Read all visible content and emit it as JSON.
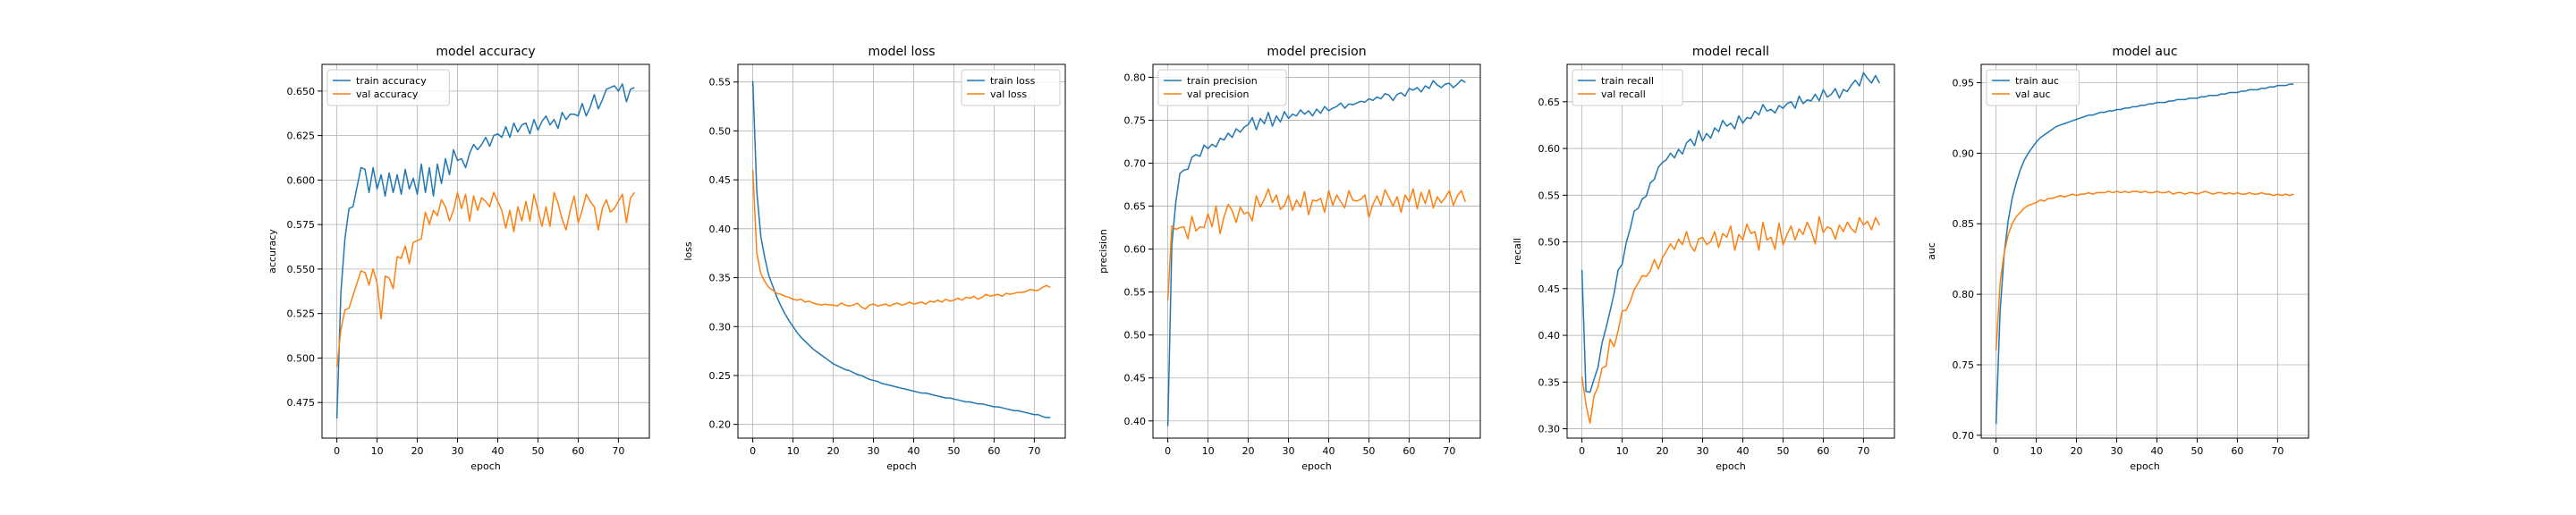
{
  "colors": {
    "train": "#1f77b4",
    "val": "#ff7f0e",
    "grid": "#b0b0b0"
  },
  "chart_data": [
    {
      "type": "line",
      "title": "model accuracy",
      "xlabel": "epoch",
      "ylabel": "accuracy",
      "grid": true,
      "legend_loc": "upper-left",
      "xlim": [
        -3.7,
        77.7
      ],
      "ylim": [
        0.455,
        0.665
      ],
      "xticks": [
        0,
        10,
        20,
        30,
        40,
        50,
        60,
        70
      ],
      "yticks": [
        0.475,
        0.5,
        0.525,
        0.55,
        0.575,
        0.6,
        0.625,
        0.65
      ],
      "ytick_labels": [
        "0.475",
        "0.500",
        "0.525",
        "0.550",
        "0.575",
        "0.600",
        "0.625",
        "0.650"
      ],
      "series": [
        {
          "name": "train accuracy",
          "color_key": "train",
          "x_step": 1,
          "values": [
            0.466,
            0.537,
            0.567,
            0.584,
            0.585,
            0.596,
            0.607,
            0.606,
            0.593,
            0.607,
            0.595,
            0.603,
            0.591,
            0.604,
            0.593,
            0.603,
            0.592,
            0.606,
            0.595,
            0.601,
            0.592,
            0.609,
            0.593,
            0.607,
            0.591,
            0.609,
            0.598,
            0.612,
            0.603,
            0.617,
            0.611,
            0.612,
            0.607,
            0.615,
            0.62,
            0.617,
            0.62,
            0.624,
            0.619,
            0.625,
            0.626,
            0.624,
            0.63,
            0.624,
            0.632,
            0.627,
            0.631,
            0.632,
            0.626,
            0.634,
            0.628,
            0.633,
            0.636,
            0.631,
            0.634,
            0.629,
            0.638,
            0.634,
            0.637,
            0.637,
            0.636,
            0.643,
            0.636,
            0.641,
            0.648,
            0.64,
            0.645,
            0.651,
            0.652,
            0.653,
            0.65,
            0.654,
            0.644,
            0.651,
            0.652
          ]
        },
        {
          "name": "val accuracy",
          "color_key": "val",
          "x_step": 1,
          "values": [
            0.495,
            0.516,
            0.527,
            0.528,
            0.535,
            0.542,
            0.549,
            0.548,
            0.541,
            0.55,
            0.542,
            0.522,
            0.546,
            0.545,
            0.539,
            0.557,
            0.556,
            0.563,
            0.553,
            0.565,
            0.566,
            0.567,
            0.582,
            0.575,
            0.583,
            0.58,
            0.589,
            0.585,
            0.577,
            0.583,
            0.593,
            0.584,
            0.592,
            0.577,
            0.591,
            0.583,
            0.59,
            0.588,
            0.585,
            0.593,
            0.588,
            0.583,
            0.573,
            0.583,
            0.571,
            0.585,
            0.577,
            0.588,
            0.577,
            0.592,
            0.583,
            0.574,
            0.585,
            0.574,
            0.593,
            0.587,
            0.578,
            0.572,
            0.583,
            0.591,
            0.576,
            0.583,
            0.592,
            0.588,
            0.585,
            0.572,
            0.584,
            0.589,
            0.582,
            0.584,
            0.588,
            0.592,
            0.576,
            0.59,
            0.593
          ]
        }
      ]
    },
    {
      "type": "line",
      "title": "model loss",
      "xlabel": "epoch",
      "ylabel": "loss",
      "grid": true,
      "legend_loc": "upper-right",
      "xlim": [
        -3.7,
        77.7
      ],
      "ylim": [
        0.186,
        0.568
      ],
      "xticks": [
        0,
        10,
        20,
        30,
        40,
        50,
        60,
        70
      ],
      "yticks": [
        0.2,
        0.25,
        0.3,
        0.35,
        0.4,
        0.45,
        0.5,
        0.55
      ],
      "ytick_labels": [
        "0.20",
        "0.25",
        "0.30",
        "0.35",
        "0.40",
        "0.45",
        "0.50",
        "0.55"
      ],
      "series": [
        {
          "name": "train loss",
          "color_key": "train",
          "x_step": 1,
          "values": [
            0.551,
            0.438,
            0.392,
            0.37,
            0.352,
            0.341,
            0.33,
            0.321,
            0.313,
            0.306,
            0.3,
            0.294,
            0.289,
            0.285,
            0.281,
            0.277,
            0.274,
            0.271,
            0.268,
            0.265,
            0.262,
            0.26,
            0.258,
            0.256,
            0.255,
            0.253,
            0.251,
            0.25,
            0.248,
            0.246,
            0.245,
            0.244,
            0.242,
            0.241,
            0.24,
            0.239,
            0.238,
            0.237,
            0.236,
            0.235,
            0.234,
            0.233,
            0.232,
            0.232,
            0.231,
            0.23,
            0.229,
            0.228,
            0.227,
            0.227,
            0.226,
            0.225,
            0.224,
            0.223,
            0.223,
            0.222,
            0.221,
            0.221,
            0.22,
            0.219,
            0.218,
            0.218,
            0.217,
            0.216,
            0.215,
            0.214,
            0.214,
            0.213,
            0.212,
            0.211,
            0.21,
            0.21,
            0.208,
            0.207,
            0.207
          ]
        },
        {
          "name": "val loss",
          "color_key": "val",
          "x_step": 1,
          "values": [
            0.46,
            0.375,
            0.354,
            0.346,
            0.34,
            0.337,
            0.334,
            0.333,
            0.331,
            0.33,
            0.328,
            0.327,
            0.328,
            0.325,
            0.326,
            0.324,
            0.323,
            0.322,
            0.323,
            0.322,
            0.322,
            0.321,
            0.324,
            0.322,
            0.321,
            0.322,
            0.324,
            0.32,
            0.318,
            0.322,
            0.323,
            0.321,
            0.322,
            0.323,
            0.321,
            0.323,
            0.324,
            0.322,
            0.323,
            0.325,
            0.323,
            0.324,
            0.325,
            0.323,
            0.326,
            0.325,
            0.327,
            0.325,
            0.328,
            0.326,
            0.327,
            0.329,
            0.327,
            0.33,
            0.329,
            0.331,
            0.328,
            0.33,
            0.333,
            0.331,
            0.332,
            0.333,
            0.331,
            0.334,
            0.333,
            0.334,
            0.335,
            0.335,
            0.336,
            0.338,
            0.337,
            0.337,
            0.34,
            0.342,
            0.34
          ]
        }
      ]
    },
    {
      "type": "line",
      "title": "model precision",
      "xlabel": "epoch",
      "ylabel": "precision",
      "grid": true,
      "legend_loc": "upper-left",
      "xlim": [
        -3.7,
        77.7
      ],
      "ylim": [
        0.38,
        0.815
      ],
      "xticks": [
        0,
        10,
        20,
        30,
        40,
        50,
        60,
        70
      ],
      "yticks": [
        0.4,
        0.45,
        0.5,
        0.55,
        0.6,
        0.65,
        0.7,
        0.75,
        0.8
      ],
      "ytick_labels": [
        "0.40",
        "0.45",
        "0.50",
        "0.55",
        "0.60",
        "0.65",
        "0.70",
        "0.75",
        "0.80"
      ],
      "series": [
        {
          "name": "train precision",
          "color_key": "train",
          "x_step": 1,
          "values": [
            0.394,
            0.605,
            0.655,
            0.688,
            0.692,
            0.693,
            0.707,
            0.71,
            0.708,
            0.721,
            0.717,
            0.722,
            0.719,
            0.729,
            0.727,
            0.735,
            0.73,
            0.74,
            0.736,
            0.742,
            0.745,
            0.753,
            0.739,
            0.752,
            0.746,
            0.759,
            0.743,
            0.755,
            0.748,
            0.76,
            0.752,
            0.757,
            0.755,
            0.762,
            0.757,
            0.761,
            0.755,
            0.763,
            0.758,
            0.766,
            0.761,
            0.764,
            0.766,
            0.77,
            0.764,
            0.769,
            0.768,
            0.77,
            0.772,
            0.771,
            0.775,
            0.773,
            0.777,
            0.775,
            0.781,
            0.779,
            0.773,
            0.78,
            0.782,
            0.778,
            0.787,
            0.785,
            0.788,
            0.783,
            0.79,
            0.787,
            0.796,
            0.791,
            0.788,
            0.792,
            0.793,
            0.788,
            0.792,
            0.797,
            0.794
          ]
        },
        {
          "name": "val precision",
          "color_key": "val",
          "x_step": 1,
          "values": [
            0.54,
            0.627,
            0.623,
            0.625,
            0.626,
            0.612,
            0.638,
            0.621,
            0.626,
            0.625,
            0.641,
            0.626,
            0.65,
            0.618,
            0.638,
            0.652,
            0.645,
            0.631,
            0.649,
            0.641,
            0.643,
            0.633,
            0.662,
            0.649,
            0.658,
            0.67,
            0.654,
            0.663,
            0.646,
            0.651,
            0.663,
            0.645,
            0.657,
            0.649,
            0.667,
            0.64,
            0.657,
            0.656,
            0.659,
            0.643,
            0.668,
            0.651,
            0.663,
            0.655,
            0.648,
            0.668,
            0.657,
            0.656,
            0.658,
            0.663,
            0.637,
            0.652,
            0.662,
            0.651,
            0.669,
            0.66,
            0.65,
            0.661,
            0.643,
            0.663,
            0.655,
            0.67,
            0.647,
            0.666,
            0.653,
            0.669,
            0.648,
            0.661,
            0.654,
            0.66,
            0.668,
            0.651,
            0.662,
            0.668,
            0.655
          ]
        }
      ]
    },
    {
      "type": "line",
      "title": "model recall",
      "xlabel": "epoch",
      "ylabel": "recall",
      "grid": true,
      "legend_loc": "upper-left",
      "xlim": [
        -3.7,
        77.7
      ],
      "ylim": [
        0.29,
        0.69
      ],
      "xticks": [
        0,
        10,
        20,
        30,
        40,
        50,
        60,
        70
      ],
      "yticks": [
        0.3,
        0.35,
        0.4,
        0.45,
        0.5,
        0.55,
        0.6,
        0.65
      ],
      "ytick_labels": [
        "0.30",
        "0.35",
        "0.40",
        "0.45",
        "0.50",
        "0.55",
        "0.60",
        "0.65"
      ],
      "series": [
        {
          "name": "train recall",
          "color_key": "train",
          "x_step": 1,
          "values": [
            0.47,
            0.34,
            0.339,
            0.353,
            0.366,
            0.392,
            0.408,
            0.426,
            0.445,
            0.47,
            0.476,
            0.499,
            0.514,
            0.533,
            0.536,
            0.546,
            0.549,
            0.563,
            0.567,
            0.58,
            0.585,
            0.588,
            0.595,
            0.59,
            0.599,
            0.594,
            0.606,
            0.61,
            0.603,
            0.619,
            0.608,
            0.616,
            0.611,
            0.622,
            0.618,
            0.63,
            0.624,
            0.627,
            0.621,
            0.635,
            0.627,
            0.633,
            0.632,
            0.64,
            0.636,
            0.647,
            0.64,
            0.642,
            0.638,
            0.646,
            0.643,
            0.648,
            0.65,
            0.643,
            0.656,
            0.648,
            0.652,
            0.651,
            0.658,
            0.651,
            0.663,
            0.655,
            0.658,
            0.664,
            0.654,
            0.663,
            0.661,
            0.668,
            0.673,
            0.667,
            0.681,
            0.675,
            0.67,
            0.678,
            0.67
          ]
        },
        {
          "name": "val recall",
          "color_key": "val",
          "x_step": 1,
          "values": [
            0.356,
            0.326,
            0.306,
            0.335,
            0.345,
            0.365,
            0.367,
            0.396,
            0.388,
            0.405,
            0.426,
            0.427,
            0.436,
            0.449,
            0.456,
            0.464,
            0.463,
            0.469,
            0.481,
            0.471,
            0.483,
            0.49,
            0.498,
            0.492,
            0.503,
            0.497,
            0.511,
            0.496,
            0.49,
            0.503,
            0.505,
            0.497,
            0.5,
            0.511,
            0.494,
            0.509,
            0.505,
            0.517,
            0.491,
            0.508,
            0.502,
            0.519,
            0.509,
            0.511,
            0.491,
            0.521,
            0.502,
            0.505,
            0.492,
            0.52,
            0.497,
            0.508,
            0.517,
            0.502,
            0.514,
            0.508,
            0.521,
            0.512,
            0.498,
            0.527,
            0.51,
            0.516,
            0.514,
            0.503,
            0.518,
            0.511,
            0.521,
            0.514,
            0.51,
            0.526,
            0.518,
            0.522,
            0.513,
            0.526,
            0.518
          ]
        }
      ]
    },
    {
      "type": "line",
      "title": "model auc",
      "xlabel": "epoch",
      "ylabel": "auc",
      "grid": true,
      "legend_loc": "upper-left",
      "xlim": [
        -3.7,
        77.7
      ],
      "ylim": [
        0.698,
        0.963
      ],
      "xticks": [
        0,
        10,
        20,
        30,
        40,
        50,
        60,
        70
      ],
      "yticks": [
        0.7,
        0.75,
        0.8,
        0.85,
        0.9,
        0.95
      ],
      "ytick_labels": [
        "0.70",
        "0.75",
        "0.80",
        "0.85",
        "0.90",
        "0.95"
      ],
      "series": [
        {
          "name": "train auc",
          "color_key": "train",
          "x_step": 1,
          "values": [
            0.708,
            0.788,
            0.828,
            0.852,
            0.868,
            0.879,
            0.888,
            0.895,
            0.9,
            0.904,
            0.908,
            0.911,
            0.913,
            0.915,
            0.917,
            0.919,
            0.92,
            0.921,
            0.922,
            0.923,
            0.924,
            0.925,
            0.926,
            0.927,
            0.927,
            0.928,
            0.929,
            0.929,
            0.93,
            0.93,
            0.931,
            0.931,
            0.932,
            0.932,
            0.933,
            0.933,
            0.934,
            0.934,
            0.935,
            0.935,
            0.936,
            0.936,
            0.936,
            0.937,
            0.937,
            0.938,
            0.938,
            0.938,
            0.939,
            0.939,
            0.939,
            0.94,
            0.94,
            0.941,
            0.941,
            0.941,
            0.942,
            0.942,
            0.943,
            0.943,
            0.943,
            0.944,
            0.944,
            0.945,
            0.945,
            0.945,
            0.946,
            0.946,
            0.947,
            0.947,
            0.948,
            0.948,
            0.948,
            0.949,
            0.949
          ]
        },
        {
          "name": "val auc",
          "color_key": "val",
          "x_step": 1,
          "values": [
            0.76,
            0.808,
            0.829,
            0.842,
            0.85,
            0.855,
            0.858,
            0.861,
            0.863,
            0.864,
            0.865,
            0.867,
            0.866,
            0.868,
            0.868,
            0.869,
            0.87,
            0.869,
            0.87,
            0.871,
            0.87,
            0.871,
            0.871,
            0.872,
            0.871,
            0.872,
            0.872,
            0.872,
            0.873,
            0.872,
            0.873,
            0.872,
            0.873,
            0.872,
            0.873,
            0.873,
            0.872,
            0.873,
            0.872,
            0.872,
            0.873,
            0.872,
            0.872,
            0.873,
            0.871,
            0.872,
            0.872,
            0.871,
            0.872,
            0.872,
            0.871,
            0.872,
            0.873,
            0.872,
            0.871,
            0.872,
            0.872,
            0.871,
            0.872,
            0.871,
            0.872,
            0.871,
            0.871,
            0.872,
            0.871,
            0.871,
            0.872,
            0.871,
            0.871,
            0.87,
            0.871,
            0.87,
            0.871,
            0.87,
            0.871
          ]
        }
      ]
    }
  ]
}
